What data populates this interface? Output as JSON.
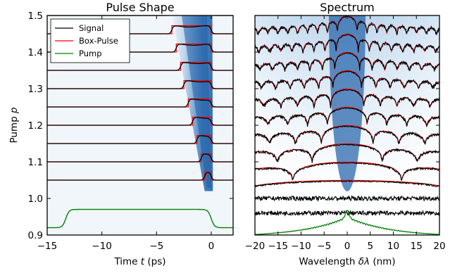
{
  "chart_data": [
    {
      "type": "line",
      "title": "Pulse Shape",
      "xlabel": "Time $t$ (ps)",
      "xlabel_text": "Time ",
      "xlabel_var": "t",
      "xlabel_unit": " (ps)",
      "ylabel": "Pump $p$",
      "ylabel_text": "Pump ",
      "ylabel_var": "p",
      "xlim": [
        -15,
        2
      ],
      "ylim": [
        0.9,
        1.5
      ],
      "xticks": [
        -15,
        -10,
        -5,
        0
      ],
      "xtick_labels": [
        "−15",
        "−10",
        "−5",
        "0"
      ],
      "yticks": [
        0.9,
        1.0,
        1.1,
        1.2,
        1.3,
        1.4,
        1.5
      ],
      "ytick_labels": [
        "0.9",
        "1.0",
        "1.1",
        "1.2",
        "1.3",
        "1.4",
        "1.5"
      ],
      "legend_position": "top-left",
      "series": [
        {
          "name": "Signal",
          "color": "#000000"
        },
        {
          "name": "Box-Pulse",
          "color": "#ff0000"
        },
        {
          "name": "Pump",
          "color": "#008000"
        }
      ],
      "pump_levels": [
        1.05,
        1.1,
        1.15,
        1.2,
        1.25,
        1.3,
        1.35,
        1.4,
        1.45,
        1.5
      ],
      "pulse_start_ps": [
        -0.6,
        -0.9,
        -1.3,
        -1.7,
        -2.1,
        -2.5,
        -2.8,
        -3.2,
        -3.6,
        -4.0
      ],
      "pulse_end_ps": [
        0.0,
        0.0,
        0.0,
        0.0,
        0.0,
        0.0,
        0.0,
        0.0,
        0.0,
        0.0
      ],
      "pulse_height": 0.022,
      "pump_pulse": {
        "start_ps": -13.3,
        "end_ps": 0.0,
        "baseline": 0.92,
        "top": 0.97
      }
    },
    {
      "type": "line",
      "title": "Spectrum",
      "xlabel": "Wavelength $\\delta\\lambda$ (nm)",
      "xlabel_text": "Wavelength ",
      "xlabel_var": "δλ",
      "xlabel_unit": " (nm)",
      "xlim": [
        -20,
        20
      ],
      "ylim": [
        0.9,
        1.5
      ],
      "xticks": [
        -20,
        -15,
        -10,
        -5,
        0,
        5,
        10,
        15,
        20
      ],
      "xtick_labels": [
        "−20",
        "−15",
        "−10",
        "−5",
        "0",
        "5",
        "10",
        "15",
        "20"
      ],
      "pump_levels": [
        1.05,
        1.1,
        1.15,
        1.2,
        1.25,
        1.3,
        1.35,
        1.4,
        1.45,
        1.5
      ],
      "first_null_nm": [
        25,
        11.8,
        7.6,
        5.6,
        4.3,
        3.6,
        3.1,
        2.7,
        2.4,
        2.15
      ],
      "noise_levels": [
        0.96,
        1.0
      ]
    }
  ]
}
